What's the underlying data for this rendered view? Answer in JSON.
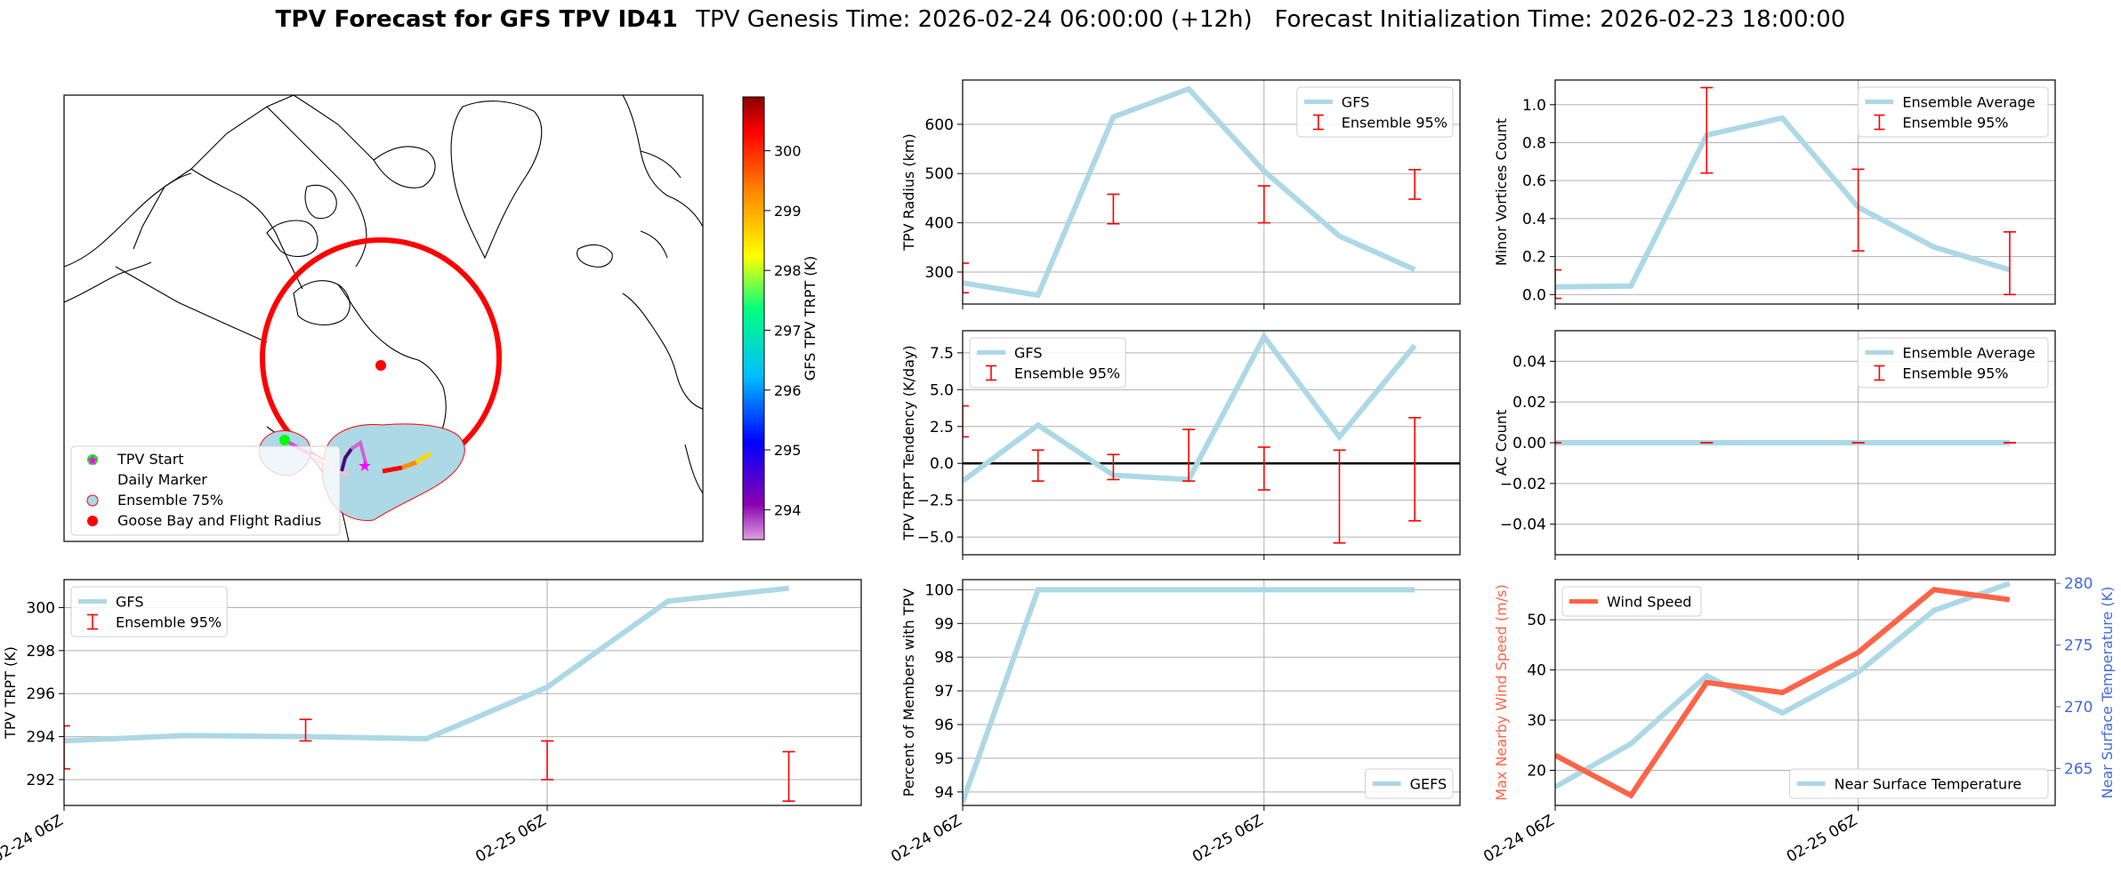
{
  "figure": {
    "title_bold": "TPV Forecast for GFS TPV ID41",
    "title_rest": "TPV Genesis Time: 2026-02-24 06:00:00 (+12h)   Forecast Initialization Time: 2026-02-23 18:00:00"
  },
  "colors": {
    "series": "#add8e6",
    "errorbar": "#ff0000",
    "wind": "#ff6347",
    "temp_axis": "#4169e1",
    "circle": "#ff0000",
    "start": "#00ff00",
    "marker": "#ff00ff",
    "ensemble_fill": "#add8e6"
  },
  "map": {
    "colorbar": {
      "label": "GFS TPV TRPT (K)",
      "ticks": [
        "294",
        "295",
        "296",
        "297",
        "298",
        "299",
        "300"
      ],
      "range": [
        293.5,
        300.9
      ]
    },
    "legend": [
      "TPV Start",
      "Daily Marker",
      "Ensemble 75%",
      "Goose Bay and Flight Radius"
    ]
  },
  "x_ticks": [
    "02-24 06Z",
    "02-25 06Z"
  ],
  "chart_data": [
    {
      "id": "radius",
      "type": "line",
      "ylabel": "TPV Radius (km)",
      "ylim": [
        235,
        690
      ],
      "yticks": [
        300,
        400,
        500,
        600
      ],
      "ytick_labels": [
        "300",
        "400",
        "500",
        "600"
      ],
      "x": [
        0,
        1,
        2,
        3,
        4,
        5,
        6
      ],
      "series": [
        {
          "name": "GFS",
          "values": [
            278,
            253,
            615,
            672,
            505,
            373,
            305
          ]
        }
      ],
      "errorbars": [
        {
          "x": 0,
          "low": 258,
          "high": 318
        },
        {
          "x": 2,
          "low": 398,
          "high": 458
        },
        {
          "x": 4,
          "low": 400,
          "high": 475
        },
        {
          "x": 6,
          "low": 448,
          "high": 508
        }
      ],
      "legend": [
        "GFS",
        "Ensemble 95%"
      ],
      "legend_loc": "upper right"
    },
    {
      "id": "minor",
      "type": "line",
      "ylabel": "Minor Vortices Count",
      "ylim": [
        -0.05,
        1.13
      ],
      "yticks": [
        0,
        0.2,
        0.4,
        0.6,
        0.8,
        1.0
      ],
      "ytick_labels": [
        "0.0",
        "0.2",
        "0.4",
        "0.6",
        "0.8",
        "1.0"
      ],
      "x": [
        0,
        1,
        2,
        3,
        4,
        5,
        6
      ],
      "series": [
        {
          "name": "Ensemble Average",
          "values": [
            0.04,
            0.045,
            0.84,
            0.93,
            0.46,
            0.25,
            0.13
          ]
        }
      ],
      "errorbars": [
        {
          "x": 0,
          "low": -0.02,
          "high": 0.13
        },
        {
          "x": 2,
          "low": 0.64,
          "high": 1.09
        },
        {
          "x": 4,
          "low": 0.23,
          "high": 0.66
        },
        {
          "x": 6,
          "low": 0.0,
          "high": 0.33
        }
      ],
      "legend": [
        "Ensemble Average",
        "Ensemble 95%"
      ],
      "legend_loc": "upper right"
    },
    {
      "id": "tendency",
      "type": "line",
      "ylabel": "TPV TRPT Tendency (K/day)",
      "ylim": [
        -6.2,
        9.0
      ],
      "yticks": [
        -5,
        -2.5,
        0,
        2.5,
        5,
        7.5
      ],
      "ytick_labels": [
        "−5.0",
        "−2.5",
        "0.0",
        "2.5",
        "5.0",
        "7.5"
      ],
      "x": [
        0,
        1,
        2,
        3,
        4,
        5,
        6
      ],
      "series": [
        {
          "name": "GFS",
          "values": [
            -1.2,
            2.6,
            -0.8,
            -1.1,
            8.6,
            1.8,
            8.0
          ]
        }
      ],
      "zero_line": true,
      "errorbars": [
        {
          "x": 0,
          "low": 1.8,
          "high": 3.9
        },
        {
          "x": 1,
          "low": -1.2,
          "high": 0.9
        },
        {
          "x": 2,
          "low": -1.1,
          "high": 0.6
        },
        {
          "x": 3,
          "low": -1.2,
          "high": 2.3
        },
        {
          "x": 4,
          "low": -1.8,
          "high": 1.1
        },
        {
          "x": 5,
          "low": -5.4,
          "high": 0.9
        },
        {
          "x": 6,
          "low": -3.9,
          "high": 3.1
        }
      ],
      "legend": [
        "GFS",
        "Ensemble 95%"
      ],
      "legend_loc": "upper left"
    },
    {
      "id": "ac",
      "type": "line",
      "ylabel": "AC Count",
      "ylim": [
        -0.055,
        0.055
      ],
      "yticks": [
        -0.04,
        -0.02,
        0,
        0.02,
        0.04
      ],
      "ytick_labels": [
        "−0.04",
        "−0.02",
        "0.00",
        "0.02",
        "0.04"
      ],
      "x": [
        0,
        1,
        2,
        3,
        4,
        5,
        6
      ],
      "series": [
        {
          "name": "Ensemble Average",
          "values": [
            0,
            0,
            0,
            0,
            0,
            0,
            0
          ]
        }
      ],
      "errorbars": [
        {
          "x": 0,
          "low": 0,
          "high": 0
        },
        {
          "x": 2,
          "low": 0,
          "high": 0
        },
        {
          "x": 4,
          "low": 0,
          "high": 0
        },
        {
          "x": 6,
          "low": 0,
          "high": 0
        }
      ],
      "legend": [
        "Ensemble Average",
        "Ensemble 95%"
      ],
      "legend_loc": "upper right"
    },
    {
      "id": "trpt",
      "type": "line",
      "ylabel": "TPV TRPT (K)",
      "ylim": [
        290.8,
        301.3
      ],
      "yticks": [
        292,
        294,
        296,
        298,
        300
      ],
      "ytick_labels": [
        "292",
        "294",
        "296",
        "298",
        "300"
      ],
      "x": [
        0,
        1,
        2,
        3,
        4,
        5,
        6
      ],
      "series": [
        {
          "name": "GFS",
          "values": [
            293.8,
            294.05,
            294.0,
            293.9,
            296.3,
            300.3,
            300.9
          ]
        }
      ],
      "errorbars": [
        {
          "x": 0,
          "low": 292.5,
          "high": 294.5
        },
        {
          "x": 2,
          "low": 293.8,
          "high": 294.8
        },
        {
          "x": 4,
          "low": 292.0,
          "high": 293.8
        },
        {
          "x": 6,
          "low": 291.0,
          "high": 293.3
        }
      ],
      "legend": [
        "GFS",
        "Ensemble 95%"
      ],
      "legend_loc": "upper left"
    },
    {
      "id": "percent",
      "type": "line",
      "ylabel": "Percent of Members with TPV",
      "ylim": [
        93.6,
        100.3
      ],
      "yticks": [
        94,
        95,
        96,
        97,
        98,
        99,
        100
      ],
      "ytick_labels": [
        "94",
        "95",
        "96",
        "97",
        "98",
        "99",
        "100"
      ],
      "x": [
        0,
        1,
        2,
        3,
        4,
        5,
        6
      ],
      "series": [
        {
          "name": "GEFS",
          "values": [
            93.7,
            100,
            100,
            100,
            100,
            100,
            100
          ]
        }
      ],
      "errorbars": [],
      "legend": [
        "GEFS"
      ],
      "legend_loc": "lower right"
    },
    {
      "id": "wind",
      "type": "line",
      "ylabel": "Max Nearby Wind Speed (m/s)",
      "ylim": [
        13,
        58
      ],
      "yticks": [
        20,
        30,
        40,
        50
      ],
      "ytick_labels": [
        "20",
        "30",
        "40",
        "50"
      ],
      "x": [
        0,
        1,
        2,
        3,
        4,
        5,
        6
      ],
      "series": [
        {
          "name": "Wind Speed",
          "values": [
            23,
            15,
            37.5,
            35.5,
            43.5,
            56,
            54
          ]
        }
      ],
      "errorbars": [],
      "legend": [
        "Wind Speed"
      ],
      "legend_loc": "upper left",
      "right_axis": {
        "ylabel": "Near Surface Temperature (K)",
        "ylim": [
          262,
          280.3
        ],
        "yticks": [
          265,
          270,
          275,
          280
        ],
        "ytick_labels": [
          "265",
          "270",
          "275",
          "280"
        ],
        "series": {
          "name": "Near Surface Temperature",
          "values": [
            263.5,
            267,
            272.5,
            269.5,
            272.8,
            277.8,
            280
          ]
        },
        "legend": [
          "Near Surface Temperature"
        ],
        "legend_loc": "lower right"
      }
    }
  ]
}
